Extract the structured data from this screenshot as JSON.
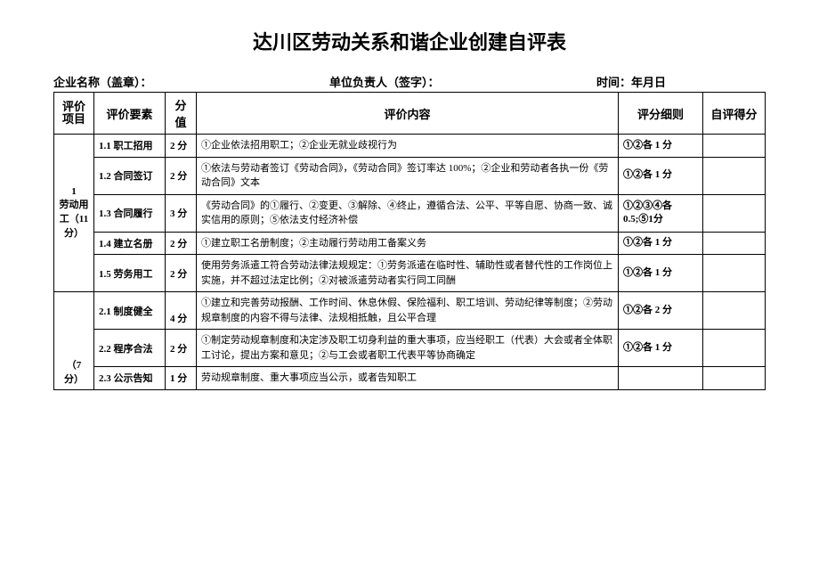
{
  "title": "达川区劳动关系和谐企业创建自评表",
  "meta": {
    "companyLabel": "企业名称（盖章）：",
    "leaderLabel": "单位负责人（签字）：",
    "timeLabel": "时间：年月日"
  },
  "headers": {
    "project": "评价项目",
    "element": "评价要素",
    "score": "分值",
    "content": "评价内容",
    "rule": "评分细则",
    "self": "自评得分"
  },
  "group1": {
    "label": "1\n劳动用工（11分）",
    "rows": [
      {
        "element": "1.1 职工招用",
        "score": "2 分",
        "content": "①企业依法招用职工；②企业无就业歧视行为",
        "rule": "①②各 1 分"
      },
      {
        "element": "1.2 合同签订",
        "score": "2 分",
        "content": "①依法与劳动者签订《劳动合同》，《劳动合同》签订率达 100%；②企业和劳动者各执一份《劳动合同》文本",
        "rule": "①②各 1 分"
      },
      {
        "element": "1.3 合同履行",
        "score": "3 分",
        "content": "《劳动合同》的①履行、②变更、③解除、④终止，遵循合法、公平、平等自愿、协商一致、诚实信用的原则；⑤依法支付经济补偿",
        "rule": "①②③④各 0.5;⑤1分"
      },
      {
        "element": "1.4 建立名册",
        "score": "2 分",
        "content": "①建立职工名册制度；②主动履行劳动用工备案义务",
        "rule": "①②各 1 分"
      },
      {
        "element": "1.5 劳务用工",
        "score": "2 分",
        "content": "使用劳务派遣工符合劳动法律法规规定：①劳务派遣在临时性、辅助性或者替代性的工作岗位上实施，并不超过法定比例；②对被派遣劳动者实行同工同酬",
        "rule": "①②各 1 分"
      }
    ]
  },
  "group2": {
    "label": "（7 分）",
    "rows": [
      {
        "element": "2.1 制度健全",
        "score": "4 分",
        "content": "①建立和完善劳动报酬、工作时间、休息休假、保险福利、职工培训、劳动纪律等制度；②劳动规章制度的内容不得与法律、法规相抵触，且公平合理",
        "rule": "①②各 2 分"
      },
      {
        "element": "2.2 程序合法",
        "score": "2 分",
        "content": "①制定劳动规章制度和决定涉及职工切身利益的重大事项，应当经职工（代表）大会或者全体职工讨论，提出方案和意见；②与工会或者职工代表平等协商确定",
        "rule": "①②各 1 分"
      },
      {
        "element": "2.3 公示告知",
        "score": "1 分",
        "content": "劳动规章制度、重大事项应当公示，或者告知职工",
        "rule": ""
      }
    ]
  },
  "styling": {
    "background_color": "#ffffff",
    "border_color": "#000000",
    "text_color": "#000000",
    "title_fontsize": 22,
    "header_fontsize": 13,
    "body_fontsize": 11
  }
}
